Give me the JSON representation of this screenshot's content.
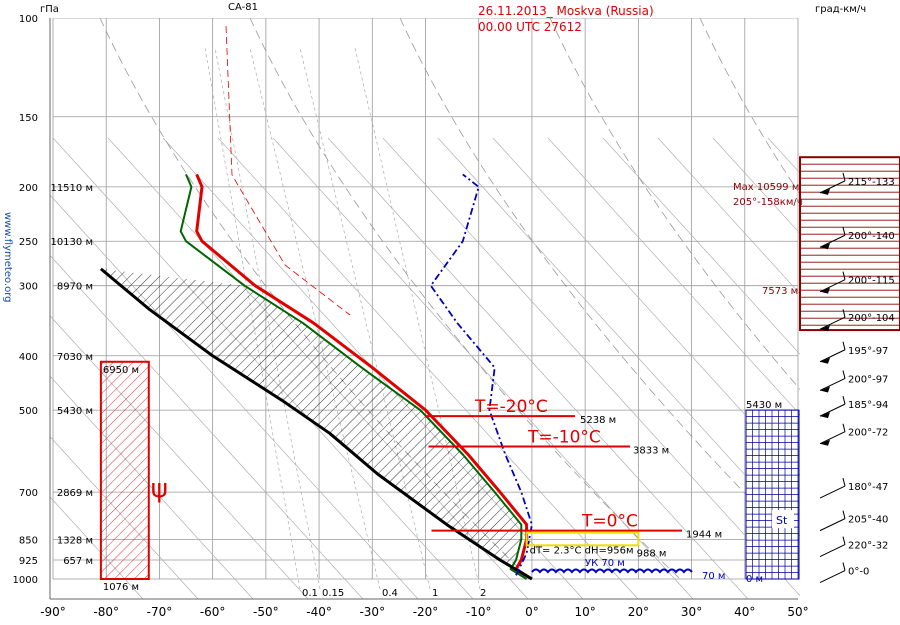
{
  "header": {
    "title_line1": "26.11.2013_ Moskva (Russia)",
    "title_line2": "00.00 UTC    27612",
    "unit_pressure": "гПа",
    "unit_wind": "град-км/ч",
    "instrument": "CA-81",
    "site": "www.flymeteo.org"
  },
  "colors": {
    "temperature": "#e00000",
    "dewpoint": "#006400",
    "path": "#000000",
    "wind_profile": "#0000c0",
    "cloud_box": "#0000a0",
    "tropopause_box": "#8b0000",
    "inversion_box": "#e8e000",
    "title": "#e00000",
    "axis_blue": "#1a4ea0"
  },
  "chart_data": {
    "type": "line",
    "x_axis": {
      "range": [
        -90,
        50
      ],
      "ticks": [
        "-90°",
        "-80°",
        "-70°",
        "-60°",
        "-50°",
        "-40°",
        "-30°",
        "-20°",
        "-10°",
        "0°",
        "10°",
        "20°",
        "30°",
        "40°",
        "50°"
      ]
    },
    "y_axis": {
      "scale": "log",
      "range": [
        1000,
        100
      ],
      "pressure_ticks": [
        {
          "p": 100,
          "label": "100"
        },
        {
          "p": 150,
          "label": "150"
        },
        {
          "p": 200,
          "label": "200"
        },
        {
          "p": 250,
          "label": "250"
        },
        {
          "p": 300,
          "label": "300"
        },
        {
          "p": 400,
          "label": "400"
        },
        {
          "p": 500,
          "label": "500"
        },
        {
          "p": 700,
          "label": "700"
        },
        {
          "p": 850,
          "label": "850"
        },
        {
          "p": 925,
          "label": "925"
        },
        {
          "p": 1000,
          "label": "1000"
        }
      ],
      "height_labels": [
        {
          "p": 200,
          "label": "11510 м"
        },
        {
          "p": 250,
          "label": "10130 м"
        },
        {
          "p": 300,
          "label": "8970 м"
        },
        {
          "p": 400,
          "label": "7030 м"
        },
        {
          "p": 500,
          "label": "5430 м"
        },
        {
          "p": 700,
          "label": "2869 м"
        },
        {
          "p": 850,
          "label": "1328 м"
        },
        {
          "p": 925,
          "label": "657 м"
        }
      ]
    },
    "mixing_ratio_labels": [
      "0.1",
      "0.15",
      "0.4",
      "1",
      "2"
    ],
    "series": [
      {
        "key": "temperature",
        "points": [
          [
            0,
            1000
          ],
          [
            -3,
            960
          ],
          [
            -2,
            925
          ],
          [
            -1,
            850
          ],
          [
            -1,
            800
          ],
          [
            -6,
            700
          ],
          [
            -12,
            600
          ],
          [
            -20,
            500
          ],
          [
            -30,
            420
          ],
          [
            -41,
            350
          ],
          [
            -52,
            300
          ],
          [
            -62,
            250
          ],
          [
            -63,
            240
          ],
          [
            -62,
            200
          ],
          [
            -63,
            190
          ]
        ]
      },
      {
        "key": "dewpoint",
        "points": [
          [
            -1,
            1000
          ],
          [
            -4,
            960
          ],
          [
            -3,
            925
          ],
          [
            -2,
            850
          ],
          [
            -2,
            800
          ],
          [
            -7,
            700
          ],
          [
            -13,
            600
          ],
          [
            -21,
            500
          ],
          [
            -32,
            420
          ],
          [
            -43,
            350
          ],
          [
            -54,
            300
          ],
          [
            -65,
            250
          ],
          [
            -66,
            240
          ],
          [
            -64,
            200
          ],
          [
            -65,
            190
          ]
        ]
      },
      {
        "key": "path",
        "points": [
          [
            0,
            1000
          ],
          [
            -6,
            925
          ],
          [
            -16,
            800
          ],
          [
            -29,
            650
          ],
          [
            -38,
            550
          ],
          [
            -47,
            480
          ],
          [
            -60,
            400
          ],
          [
            -72,
            330
          ],
          [
            -81,
            280
          ]
        ]
      },
      {
        "key": "wind_profile",
        "points": [
          [
            -3,
            985
          ],
          [
            -1,
            900
          ],
          [
            0,
            800
          ],
          [
            -2,
            700
          ],
          [
            -5,
            600
          ],
          [
            -8,
            500
          ],
          [
            -7,
            420
          ],
          [
            -14,
            350
          ],
          [
            -19,
            300
          ],
          [
            -13,
            250
          ],
          [
            -10,
            200
          ],
          [
            -13,
            190
          ]
        ]
      }
    ],
    "freezing_levels": [
      {
        "label": "T=-20°C",
        "height": "5238 м",
        "p": 500
      },
      {
        "label": "T=-10°C",
        "height": "3833 м",
        "p": 600
      },
      {
        "label": "T=0°C",
        "height": "1944 м",
        "p": 800
      }
    ],
    "inversion": {
      "text": "dT= 2.3°C dH=956м",
      "p_top": 800,
      "p_bottom": 900,
      "x_from": -1,
      "x_to": 20,
      "base_label": "988 м"
    },
    "surface": {
      "label": "УК 70 м",
      "right_label": "70 м"
    },
    "ice_box": {
      "top_label": "6950 м",
      "bottom_label": "1076 м",
      "symbol": "ψ",
      "p_top": 410,
      "p_bottom": 1000,
      "x_from": -81,
      "x_to": -72
    },
    "cloud_box": {
      "top_label": "5430 м",
      "bottom_label": "0 м",
      "type_label": "St",
      "p_top": 500,
      "p_bottom": 1000
    },
    "tropopause_box": {
      "labels": [
        "Max 10599 м",
        "205°-158км/ч",
        "7573 м"
      ],
      "p_top": 180,
      "p_bottom": 360
    },
    "winds": [
      {
        "p": 200,
        "label": "215°-133"
      },
      {
        "p": 250,
        "label": "200°-140"
      },
      {
        "p": 300,
        "label": "200°-115"
      },
      {
        "p": 350,
        "label": "200°-104"
      },
      {
        "p": 400,
        "label": "195°-97"
      },
      {
        "p": 450,
        "label": "200°-97"
      },
      {
        "p": 500,
        "label": "185°-94"
      },
      {
        "p": 560,
        "label": "200°-72"
      },
      {
        "p": 700,
        "label": "180°-47"
      },
      {
        "p": 800,
        "label": "205°-40"
      },
      {
        "p": 890,
        "label": "220°-32"
      },
      {
        "p": 990,
        "label": "0°-0"
      }
    ]
  }
}
